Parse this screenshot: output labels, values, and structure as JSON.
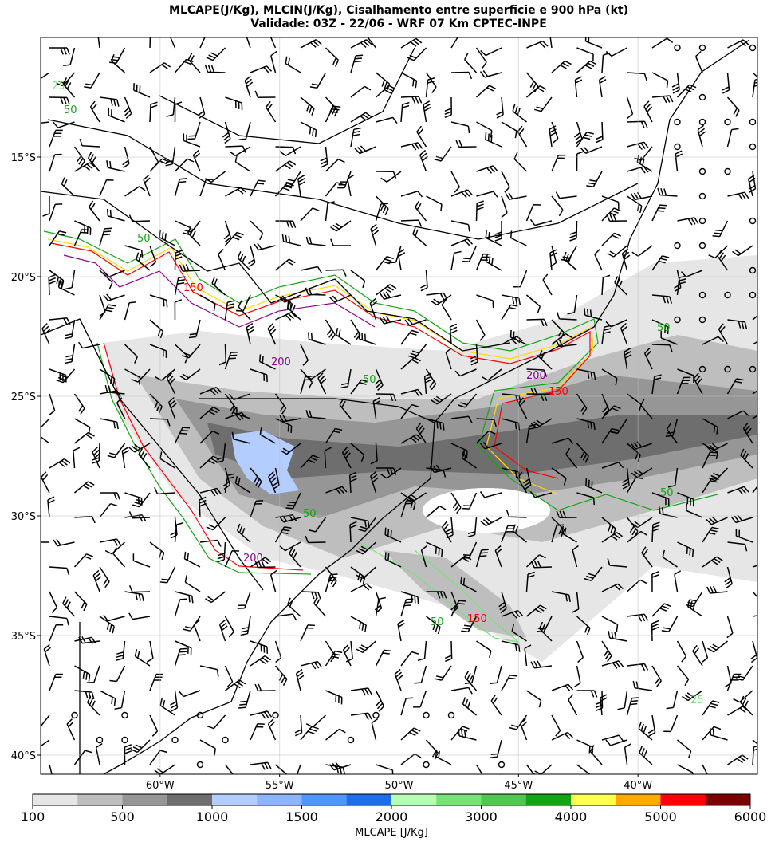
{
  "map": {
    "title": "MLCAPE(J/Kg), MLCIN(J/Kg), Cisalhamento entre superficie e 900 hPa (kt)",
    "subtitle": "Validade: 03Z - 22/06 - WRF 07 Km CPTEC-INPE",
    "xlim": [
      -65,
      -35
    ],
    "ylim": [
      -10,
      -40.8
    ],
    "xticks": [
      {
        "value": -60,
        "label": "60°W"
      },
      {
        "value": -55,
        "label": "55°W"
      },
      {
        "value": -50,
        "label": "50°W"
      },
      {
        "value": -45,
        "label": "45°W"
      },
      {
        "value": -40,
        "label": "40°W"
      }
    ],
    "yticks": [
      {
        "value": -15,
        "label": "15°S"
      },
      {
        "value": -20,
        "label": "20°S"
      },
      {
        "value": -25,
        "label": "25°S"
      },
      {
        "value": -30,
        "label": "30°S"
      },
      {
        "value": -35,
        "label": "35°S"
      },
      {
        "value": -40,
        "label": "40°S"
      }
    ],
    "contour_labels": [
      25,
      50,
      50,
      150,
      150,
      200,
      200,
      50,
      50,
      50,
      50,
      200,
      150,
      50,
      25
    ],
    "colorbar": {
      "label": "MLCAPE [J/Kg]",
      "colors": [
        "#e6e6e6",
        "#bebebe",
        "#969696",
        "#6e6e6e",
        "#b4cdff",
        "#8cb4ff",
        "#5096ff",
        "#1e6eeb",
        "#b4ffb4",
        "#78e178",
        "#50c850",
        "#14a514",
        "#ffff50",
        "#ffaa00",
        "#ff0000",
        "#7d0000"
      ],
      "ticks": [
        100,
        500,
        1000,
        1500,
        2000,
        3000,
        4000,
        5000,
        6000
      ]
    }
  }
}
